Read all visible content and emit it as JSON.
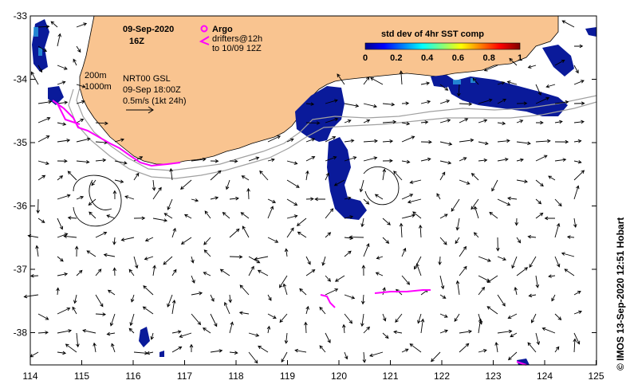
{
  "map": {
    "date": "09-Sep-2020",
    "hour": "16Z",
    "legend": {
      "argo_label": "Argo",
      "drifter_label": "drifters@12h",
      "drifter_range": "to 10/09 12Z"
    },
    "colorbar": {
      "title": "std dev of 4hr SST comp",
      "ticks": [
        "0",
        "0.2",
        "0.4",
        "0.6",
        "0.8",
        "1"
      ]
    },
    "contours": {
      "label_200": "200m",
      "label_1000": "1000m"
    },
    "product": {
      "name": "NRT00 GSL",
      "time": "09-Sep 18:00Z",
      "scale": "0.5m/s (1kt 24h)"
    },
    "lat_ticks": [
      "-33",
      "-34",
      "-35",
      "-36",
      "-37",
      "-38"
    ],
    "lon_ticks": [
      "114",
      "115",
      "116",
      "117",
      "118",
      "119",
      "120",
      "121",
      "122",
      "123",
      "124",
      "125"
    ],
    "credit": "© IMOS 13-Sep-2020 12:51 Hobart",
    "colors": {
      "land": "#f9c490",
      "drifter": "#ff00ff",
      "sst_patch": "#0a1a9a",
      "isobath": "#a0a0a0"
    }
  }
}
